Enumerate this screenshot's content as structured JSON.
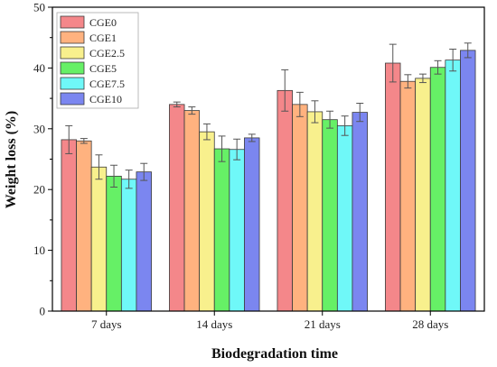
{
  "chart_data": {
    "type": "bar",
    "title": "",
    "xlabel": "Biodegradation time",
    "ylabel": "Weight loss (%)",
    "ylim": [
      0,
      50
    ],
    "yticks": [
      0,
      10,
      20,
      30,
      40,
      50
    ],
    "categories": [
      "7 days",
      "14 days",
      "21 days",
      "28 days"
    ],
    "legend_position": "top-left",
    "grid": false,
    "error_bars": true,
    "series": [
      {
        "name": "CGE0",
        "color": "#f4878a",
        "values": [
          28.2,
          34.0,
          36.3,
          40.8
        ],
        "errors": [
          2.3,
          0.4,
          3.4,
          3.1
        ]
      },
      {
        "name": "CGE1",
        "color": "#ffb27f",
        "values": [
          28.0,
          33.0,
          34.0,
          37.8
        ],
        "errors": [
          0.4,
          0.6,
          2.0,
          1.1
        ]
      },
      {
        "name": "CGE2.5",
        "color": "#f8f08d",
        "values": [
          23.7,
          29.5,
          32.8,
          38.3
        ],
        "errors": [
          2.0,
          1.3,
          1.8,
          0.7
        ]
      },
      {
        "name": "CGE5",
        "color": "#66f066",
        "values": [
          22.2,
          26.7,
          31.5,
          40.1
        ],
        "errors": [
          1.8,
          2.1,
          1.4,
          1.1
        ]
      },
      {
        "name": "CGE7.5",
        "color": "#6ff8f8",
        "values": [
          21.7,
          26.6,
          30.5,
          41.3
        ],
        "errors": [
          1.5,
          1.7,
          1.6,
          1.8
        ]
      },
      {
        "name": "CGE10",
        "color": "#7b86f0",
        "values": [
          22.9,
          28.5,
          32.7,
          42.9
        ],
        "errors": [
          1.4,
          0.6,
          1.5,
          1.2
        ]
      }
    ]
  }
}
